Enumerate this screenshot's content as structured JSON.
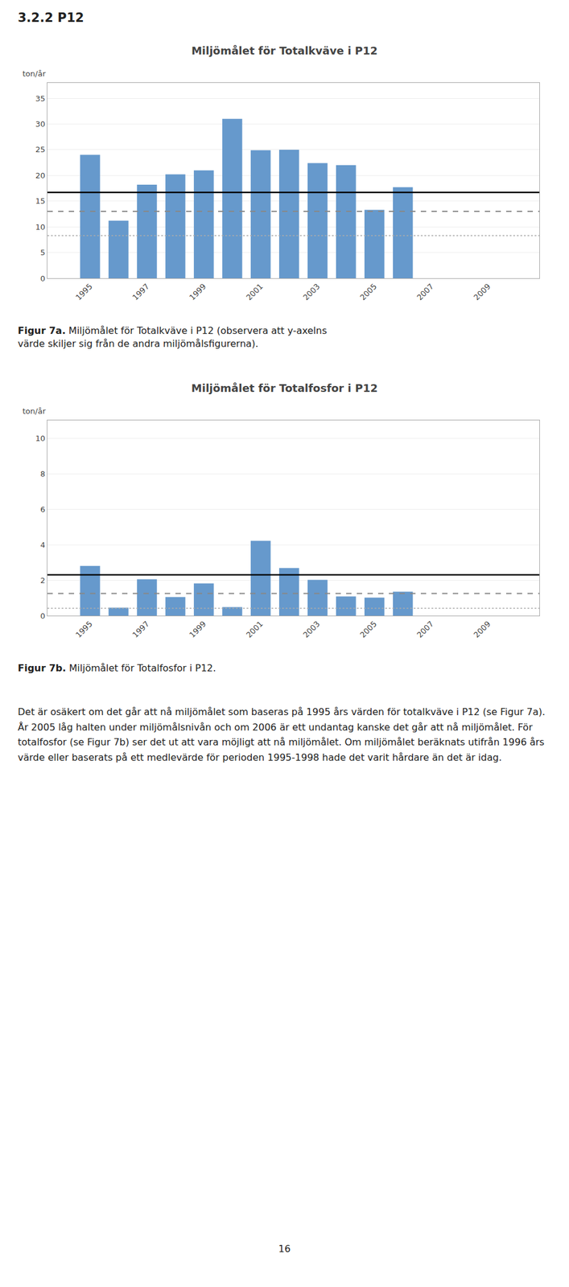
{
  "section_title": "3.2.2 P12",
  "body_text": "Det är osäkert om det går att nå miljömålet som baseras på 1995 års värden för totalkväve i P12 (se Figur 7a). År 2005 låg halten under miljömålsnivån och om 2006 är ett undantag kanske det går att nå miljömålet. För totalfosfor (se Figur 7b) ser det ut att vara möjligt att nå miljömålet. Om miljömålet beräknats utifrån 1996 års värde eller baserats på ett medlevärde för perioden 1995-1998 hade det varit hårdare än det är idag.",
  "page_number": "16",
  "chart_data": [
    {
      "type": "bar",
      "title": "Miljömålet för Totalkväve i P12",
      "ylabel": "ton/år",
      "caption_label": "Figur 7a.",
      "caption": "Miljömålet för Totalkväve i P12 (observera att y-axelns\nvärde skiljer sig från de andra miljömålsfigurerna).",
      "x": [
        1995,
        1996,
        1997,
        1998,
        1999,
        2000,
        2001,
        2002,
        2003,
        2004,
        2005,
        2006
      ],
      "values": [
        24.0,
        11.2,
        18.2,
        20.2,
        21.0,
        31.0,
        24.9,
        25.0,
        22.4,
        22.0,
        13.3,
        17.7
      ],
      "color": "#6699CC",
      "xlim": [
        1993.5,
        2010.8
      ],
      "xticks": [
        1995,
        1997,
        1999,
        2001,
        2003,
        2005,
        2007,
        2009
      ],
      "ylim": [
        0,
        38
      ],
      "yticks": [
        0,
        5,
        10,
        15,
        20,
        25,
        30,
        35
      ],
      "grid": true,
      "lines": [
        {
          "y": 16.7,
          "color": "#000000",
          "line_style": "solid"
        },
        {
          "y": 13.0,
          "color": "#888888",
          "line_style": "dashed"
        },
        {
          "y": 8.3,
          "color": "#aaaaaa",
          "line_style": "dotted"
        }
      ]
    },
    {
      "type": "bar",
      "title": "Miljömålet för Totalfosfor i P12",
      "ylabel": "ton/år",
      "caption_label": "Figur 7b.",
      "caption": "Miljömålet för Totalfosfor i P12.",
      "x": [
        1995,
        1996,
        1997,
        1998,
        1999,
        2000,
        2001,
        2002,
        2003,
        2004,
        2005,
        2006
      ],
      "values": [
        2.8,
        0.45,
        2.05,
        1.05,
        1.82,
        0.48,
        4.22,
        2.68,
        2.02,
        1.08,
        1.02,
        1.35
      ],
      "color": "#6699CC",
      "xlim": [
        1993.5,
        2010.8
      ],
      "xticks": [
        1995,
        1997,
        1999,
        2001,
        2003,
        2005,
        2007,
        2009
      ],
      "ylim": [
        0,
        11
      ],
      "yticks": [
        0,
        2,
        4,
        6,
        8,
        10
      ],
      "grid": true,
      "lines": [
        {
          "y": 2.3,
          "color": "#000000",
          "line_style": "solid"
        },
        {
          "y": 1.25,
          "color": "#888888",
          "line_style": "dashed"
        },
        {
          "y": 0.42,
          "color": "#aaaaaa",
          "line_style": "dotted"
        }
      ]
    }
  ]
}
